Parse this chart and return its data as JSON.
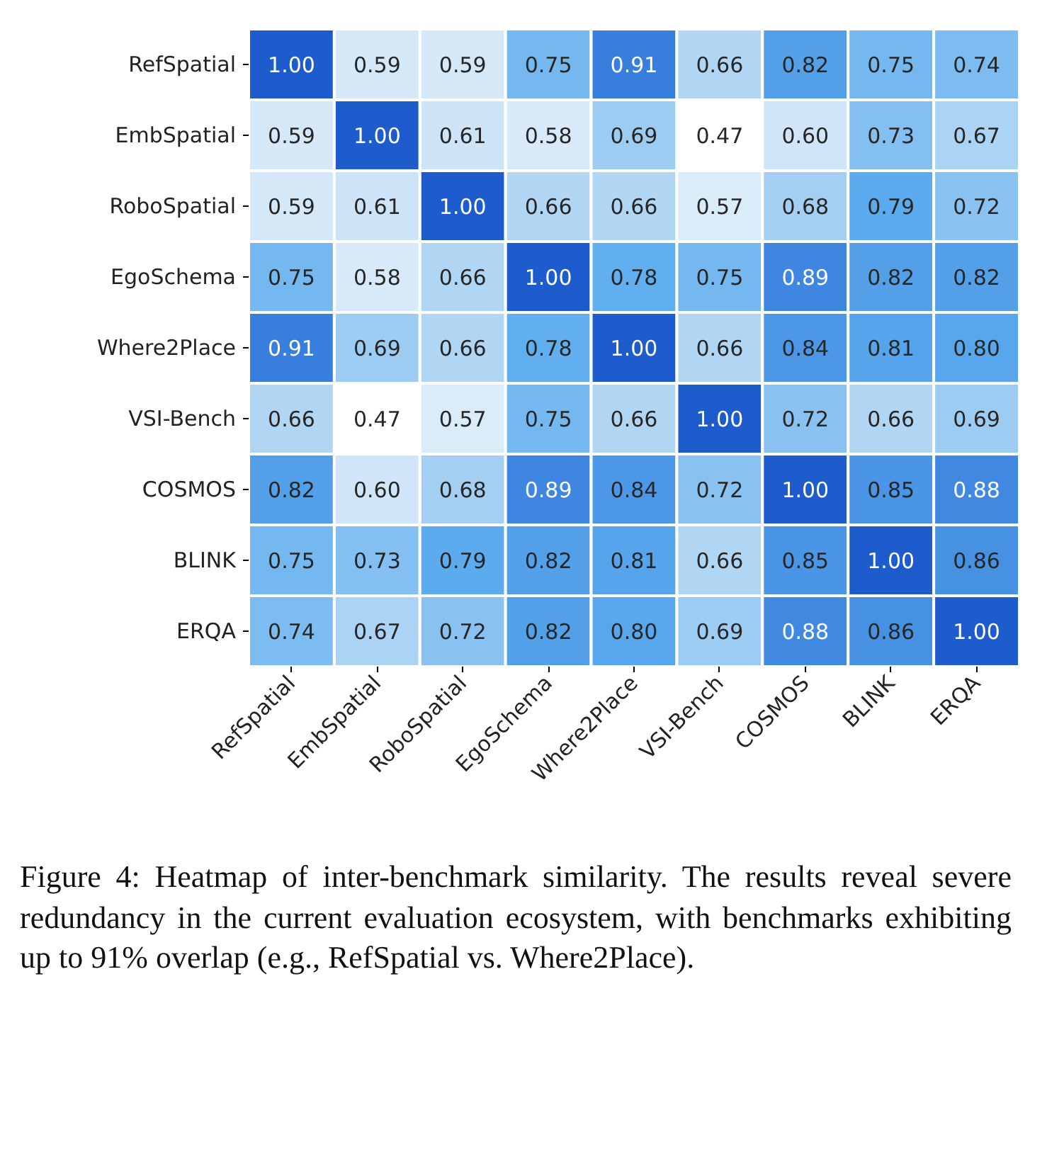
{
  "chart_data": {
    "type": "heatmap",
    "categories": [
      "RefSpatial",
      "EmbSpatial",
      "RoboSpatial",
      "EgoSchema",
      "Where2Place",
      "VSI-Bench",
      "COSMOS",
      "BLINK",
      "ERQA"
    ],
    "y_categories": [
      "RefSpatial",
      "EmbSpatial",
      "RoboSpatial",
      "EgoSchema",
      "Where2Place",
      "VSI-Bench",
      "COSMOS",
      "BLINK",
      "ERQA"
    ],
    "cells": [
      [
        1.0,
        0.59,
        0.59,
        0.75,
        0.91,
        0.66,
        0.82,
        0.75,
        0.74
      ],
      [
        0.59,
        1.0,
        0.61,
        0.58,
        0.69,
        0.47,
        0.6,
        0.73,
        0.67
      ],
      [
        0.59,
        0.61,
        1.0,
        0.66,
        0.66,
        0.57,
        0.68,
        0.79,
        0.72
      ],
      [
        0.75,
        0.58,
        0.66,
        1.0,
        0.78,
        0.75,
        0.89,
        0.82,
        0.82
      ],
      [
        0.91,
        0.69,
        0.66,
        0.78,
        1.0,
        0.66,
        0.84,
        0.81,
        0.8
      ],
      [
        0.66,
        0.47,
        0.57,
        0.75,
        0.66,
        1.0,
        0.72,
        0.66,
        0.69
      ],
      [
        0.82,
        0.6,
        0.68,
        0.89,
        0.84,
        0.72,
        1.0,
        0.85,
        0.88
      ],
      [
        0.75,
        0.73,
        0.79,
        0.82,
        0.81,
        0.66,
        0.85,
        1.0,
        0.86
      ],
      [
        0.74,
        0.67,
        0.72,
        0.82,
        0.8,
        0.69,
        0.88,
        0.86,
        1.0
      ]
    ],
    "cell_labels": [
      [
        "1.00",
        "0.59",
        "0.59",
        "0.75",
        "0.91",
        "0.66",
        "0.82",
        "0.75",
        "0.74"
      ],
      [
        "0.59",
        "1.00",
        "0.61",
        "0.58",
        "0.69",
        "0.47",
        "0.60",
        "0.73",
        "0.67"
      ],
      [
        "0.59",
        "0.61",
        "1.00",
        "0.66",
        "0.66",
        "0.57",
        "0.68",
        "0.79",
        "0.72"
      ],
      [
        "0.75",
        "0.58",
        "0.66",
        "1.00",
        "0.78",
        "0.75",
        "0.89",
        "0.82",
        "0.82"
      ],
      [
        "0.91",
        "0.69",
        "0.66",
        "0.78",
        "1.00",
        "0.66",
        "0.84",
        "0.81",
        "0.80"
      ],
      [
        "0.66",
        "0.47",
        "0.57",
        "0.75",
        "0.66",
        "1.00",
        "0.72",
        "0.66",
        "0.69"
      ],
      [
        "0.82",
        "0.60",
        "0.68",
        "0.89",
        "0.84",
        "0.72",
        "1.00",
        "0.85",
        "0.88"
      ],
      [
        "0.75",
        "0.73",
        "0.79",
        "0.82",
        "0.81",
        "0.66",
        "0.85",
        "1.00",
        "0.86"
      ],
      [
        "0.74",
        "0.67",
        "0.72",
        "0.82",
        "0.80",
        "0.69",
        "0.88",
        "0.86",
        "1.00"
      ]
    ],
    "annotations": [
      "Figure 4: Heatmap of inter-benchmark similarity. The results reveal severe redundancy in the current evaluation ecosystem, with benchmarks exhibiting up to 91% overlap (e.g., RefSpatial vs. Where2Place)."
    ]
  }
}
